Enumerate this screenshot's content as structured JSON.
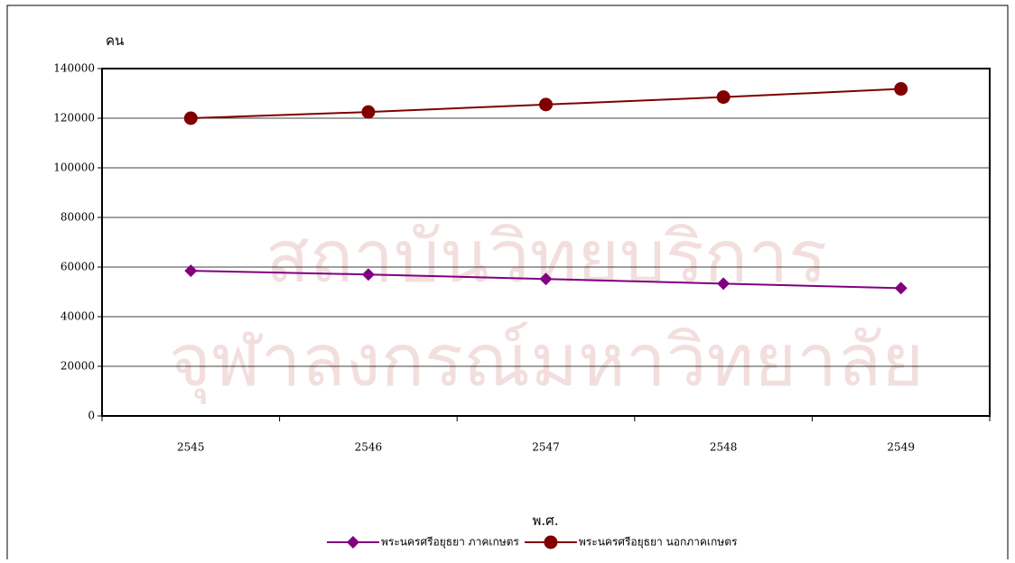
{
  "chart_data": {
    "type": "line",
    "y_label": "คน",
    "x_label": "พ.ศ.",
    "categories": [
      "2545",
      "2546",
      "2547",
      "2548",
      "2549"
    ],
    "series": [
      {
        "name": "พระนครศรีอยุธยา ภาคเกษตร",
        "color": "#800080",
        "marker": "diamond",
        "values": [
          58500,
          57000,
          55200,
          53300,
          51500
        ]
      },
      {
        "name": "พระนครศรีอยุธยา นอกภาคเกษตร",
        "color": "#800000",
        "marker": "circle",
        "values": [
          120000,
          122500,
          125500,
          128500,
          131800
        ]
      }
    ],
    "ylim": [
      0,
      140000
    ],
    "yticks": [
      0,
      20000,
      40000,
      60000,
      80000,
      100000,
      120000,
      140000
    ],
    "grid": true,
    "legend": "bottom",
    "watermark": [
      "สถาบันวิทยบริการ",
      "จุฬาลงกรณ์มหาวิทยาลัย"
    ]
  }
}
